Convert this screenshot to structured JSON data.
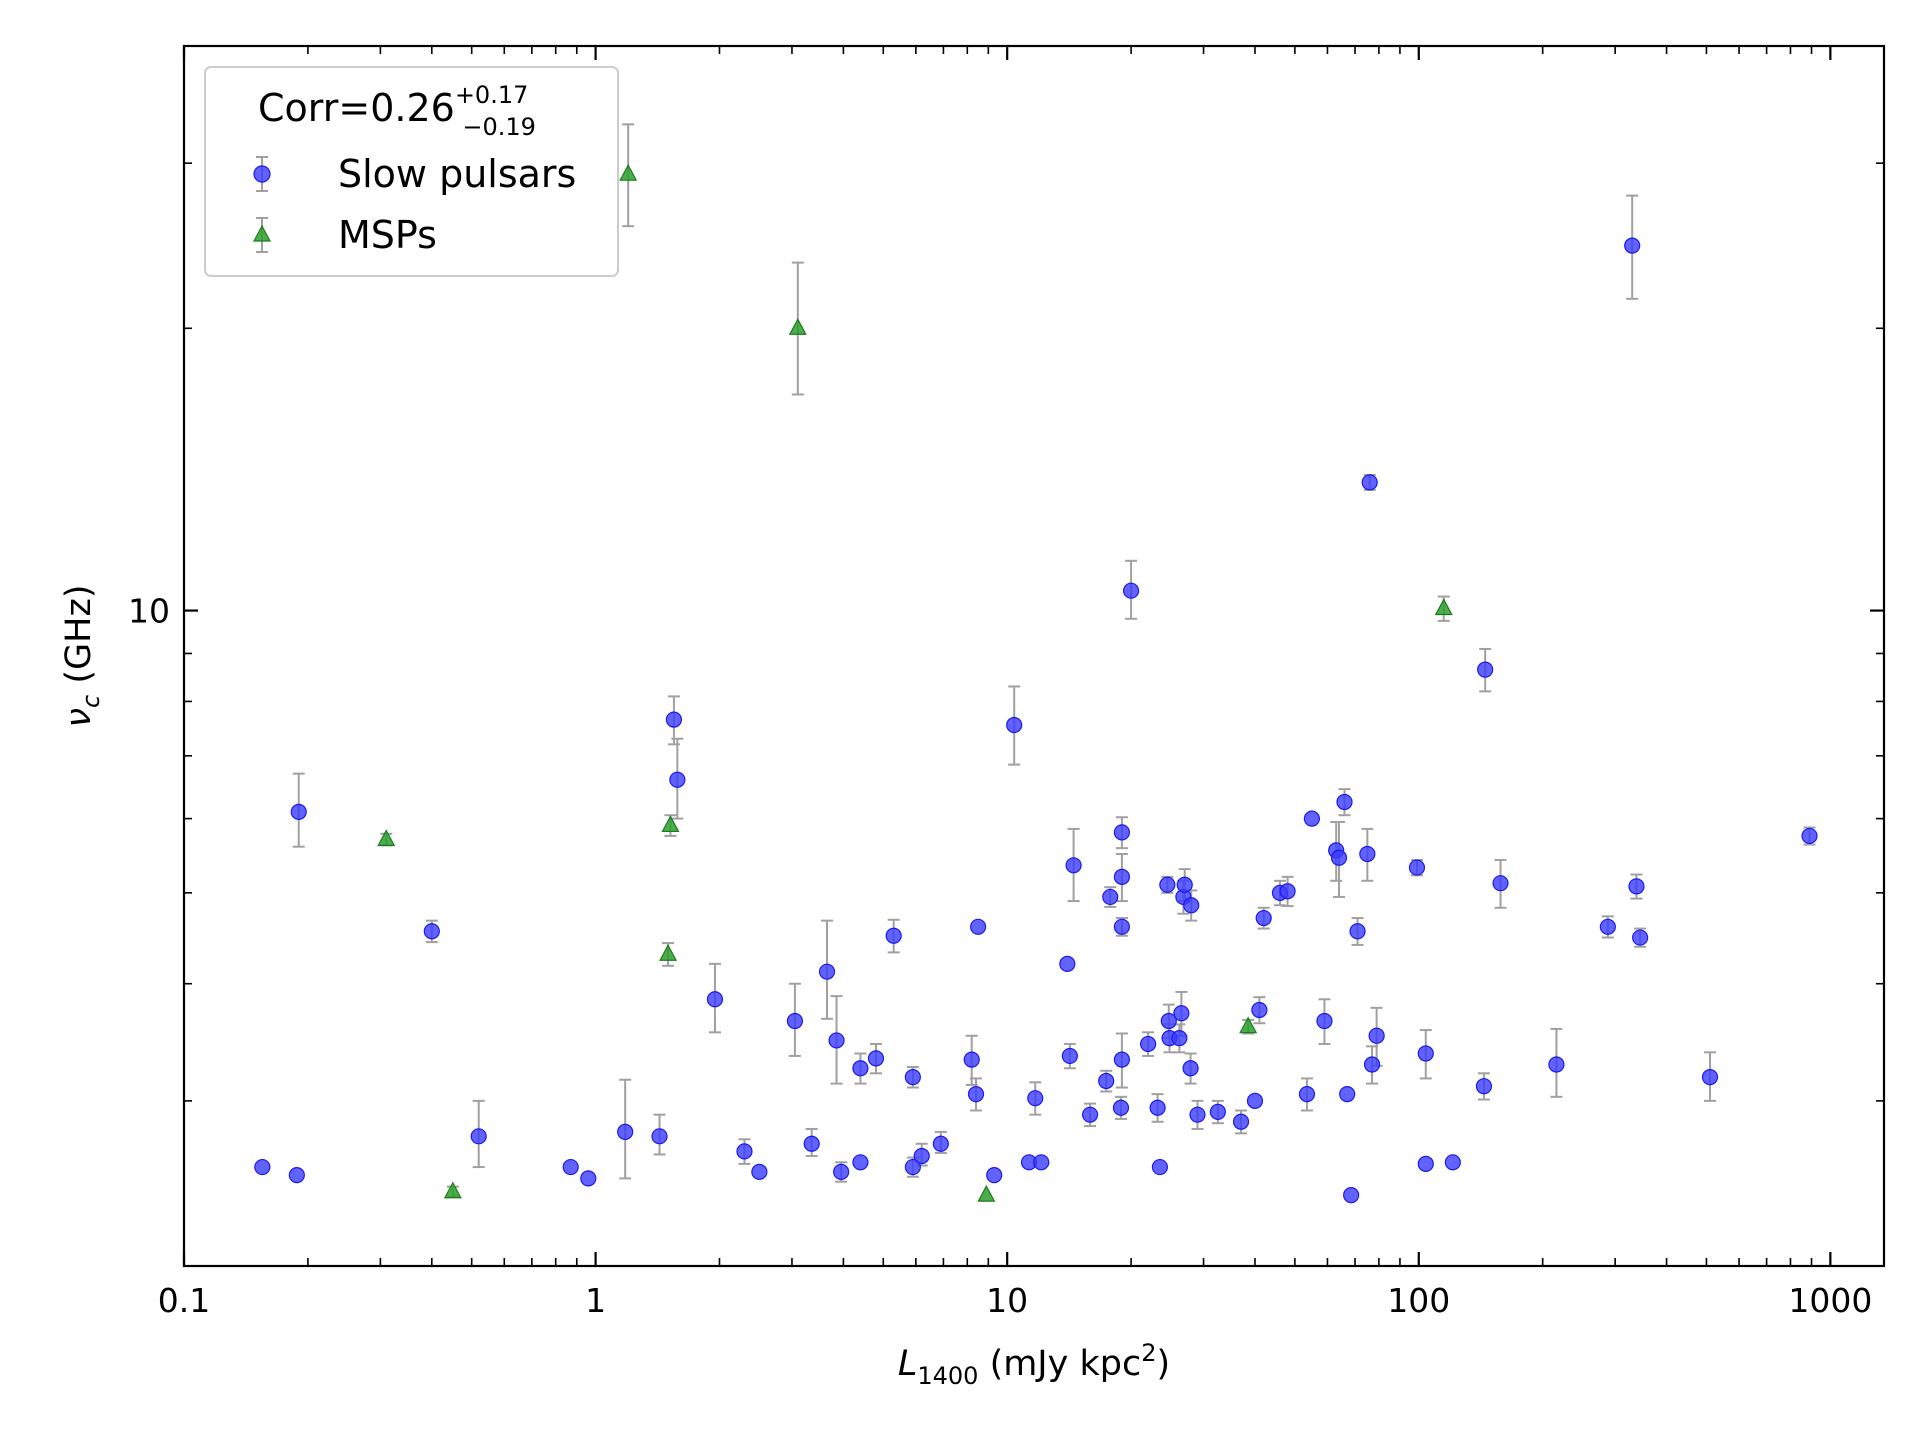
{
  "chart_data": {
    "type": "scatter",
    "xscale": "log",
    "yscale": "log",
    "xlim": [
      0.1,
      1350
    ],
    "ylim": [
      2.0,
      40
    ],
    "xticks": [
      {
        "value": 0.1,
        "label": "0.1"
      },
      {
        "value": 1,
        "label": "1"
      },
      {
        "value": 10,
        "label": "10"
      },
      {
        "value": 100,
        "label": "100"
      },
      {
        "value": 1000,
        "label": "1000"
      }
    ],
    "yticks": [
      {
        "value": 10,
        "label": "10"
      }
    ],
    "xlabel": {
      "main": "L",
      "sub": "1400",
      "unit_pre": " (mJy kpc",
      "unit_sup": "2",
      "unit_post": ")"
    },
    "ylabel": {
      "main": "ν",
      "sub": "c",
      "unit": " (GHz)"
    },
    "grid": false,
    "legend": {
      "placement": "top-left",
      "title_main": "Corr=0.26",
      "title_sup": "+0.17",
      "title_sub": "−0.19"
    },
    "colors": {
      "slow": "#3b3bff",
      "msp": "#2ca02c",
      "errorbar": "#a0a0a0"
    },
    "series": [
      {
        "name": "Slow pulsars",
        "marker": "circle",
        "points": [
          [
            0.155,
            2.55,
            0,
            0
          ],
          [
            0.188,
            2.5,
            0,
            0
          ],
          [
            0.19,
            6.1,
            0.6,
            0.5
          ],
          [
            0.4,
            4.55,
            0.12,
            0.12
          ],
          [
            0.52,
            2.75,
            0.25,
            0.2
          ],
          [
            0.87,
            2.55,
            0,
            0
          ],
          [
            0.96,
            2.48,
            0,
            0
          ],
          [
            1.18,
            2.78,
            0.38,
            0.3
          ],
          [
            1.43,
            2.75,
            0.15,
            0.12
          ],
          [
            1.55,
            7.65,
            0.45,
            0.45
          ],
          [
            1.58,
            6.6,
            0.7,
            0.6
          ],
          [
            1.95,
            3.85,
            0.35,
            0.3
          ],
          [
            2.3,
            2.65,
            0.08,
            0.08
          ],
          [
            2.5,
            2.52,
            0,
            0
          ],
          [
            3.05,
            3.65,
            0.35,
            0.3
          ],
          [
            3.35,
            2.7,
            0.1,
            0.08
          ],
          [
            3.65,
            4.12,
            0.55,
            0.45
          ],
          [
            3.85,
            3.48,
            0.4,
            0.35
          ],
          [
            3.95,
            2.52,
            0.06,
            0.06
          ],
          [
            4.4,
            3.25,
            0.12,
            0.12
          ],
          [
            4.4,
            2.58,
            0,
            0
          ],
          [
            4.8,
            3.33,
            0.12,
            0.12
          ],
          [
            5.3,
            4.5,
            0.18,
            0.18
          ],
          [
            5.9,
            3.18,
            0.08,
            0.08
          ],
          [
            5.9,
            2.55,
            0.06,
            0.06
          ],
          [
            6.2,
            2.62,
            0.08,
            0.06
          ],
          [
            6.9,
            2.7,
            0.08,
            0.06
          ],
          [
            8.2,
            3.32,
            0.2,
            0.2
          ],
          [
            8.4,
            3.05,
            0.12,
            0.12
          ],
          [
            8.5,
            4.6,
            0,
            0
          ],
          [
            9.3,
            2.5,
            0,
            0
          ],
          [
            10.4,
            7.55,
            0.75,
            0.7
          ],
          [
            11.3,
            2.58,
            0,
            0
          ],
          [
            11.7,
            3.02,
            0.12,
            0.12
          ],
          [
            12.1,
            2.58,
            0,
            0
          ],
          [
            14.0,
            4.2,
            0,
            0
          ],
          [
            14.2,
            3.35,
            0.1,
            0.1
          ],
          [
            14.5,
            5.35,
            0.5,
            0.45
          ],
          [
            15.9,
            2.9,
            0.08,
            0.08
          ],
          [
            17.4,
            3.15,
            0.08,
            0.08
          ],
          [
            17.8,
            4.95,
            0.12,
            0.12
          ],
          [
            18.9,
            2.95,
            0.08,
            0.08
          ],
          [
            19.0,
            5.8,
            0.22,
            0.22
          ],
          [
            19.0,
            3.32,
            0.22,
            0.22
          ],
          [
            19.0,
            4.6,
            0.1,
            0.1
          ],
          [
            19.0,
            5.2,
            0.3,
            0.3
          ],
          [
            20.0,
            10.5,
            0.8,
            0.7
          ],
          [
            22.0,
            3.45,
            0.1,
            0.1
          ],
          [
            23.2,
            2.95,
            0.1,
            0.1
          ],
          [
            23.5,
            2.55,
            0,
            0
          ],
          [
            24.5,
            5.1,
            0.1,
            0.1
          ],
          [
            24.7,
            3.65,
            0.15,
            0.15
          ],
          [
            24.8,
            3.5,
            0.12,
            0.12
          ],
          [
            26.2,
            3.5,
            0.12,
            0.12
          ],
          [
            26.5,
            3.72,
            0.2,
            0.2
          ],
          [
            26.8,
            4.95,
            0.2,
            0.2
          ],
          [
            27.0,
            5.1,
            0.2,
            0.2
          ],
          [
            27.9,
            3.25,
            0.12,
            0.12
          ],
          [
            28.0,
            4.85,
            0.18,
            0.18
          ],
          [
            29.0,
            2.9,
            0.1,
            0.1
          ],
          [
            32.5,
            2.92,
            0.08,
            0.08
          ],
          [
            37.0,
            2.85,
            0.08,
            0.08
          ],
          [
            40.0,
            3.0,
            0,
            0
          ],
          [
            41.0,
            3.75,
            0.12,
            0.12
          ],
          [
            42.0,
            4.7,
            0.12,
            0.12
          ],
          [
            46.0,
            5.0,
            0.15,
            0.15
          ],
          [
            48.0,
            5.02,
            0.18,
            0.18
          ],
          [
            53.5,
            3.05,
            0.12,
            0.12
          ],
          [
            55.0,
            6.0,
            0,
            0
          ],
          [
            59.0,
            3.65,
            0.2,
            0.2
          ],
          [
            63.0,
            5.55,
            0.4,
            0.4
          ],
          [
            64.0,
            5.45,
            0.5,
            0.5
          ],
          [
            66.0,
            6.25,
            0.2,
            0.2
          ],
          [
            67.0,
            3.05,
            0,
            0
          ],
          [
            68.5,
            2.38,
            0,
            0
          ],
          [
            71.0,
            4.55,
            0.15,
            0.15
          ],
          [
            75.0,
            5.5,
            0.35,
            0.35
          ],
          [
            76.0,
            13.7,
            0.25,
            0.25
          ],
          [
            77.0,
            3.28,
            0.15,
            0.15
          ],
          [
            79.0,
            3.52,
            0.25,
            0.25
          ],
          [
            99.0,
            5.32,
            0.1,
            0.1
          ],
          [
            104.0,
            3.37,
            0.2,
            0.2
          ],
          [
            104.0,
            2.57,
            0,
            0
          ],
          [
            121.0,
            2.58,
            0,
            0
          ],
          [
            144.0,
            3.11,
            0.1,
            0.1
          ],
          [
            145.0,
            8.65,
            0.45,
            0.45
          ],
          [
            158.0,
            5.12,
            0.3,
            0.3
          ],
          [
            216.0,
            3.28,
            0.3,
            0.25
          ],
          [
            288.0,
            4.6,
            0.12,
            0.12
          ],
          [
            330.0,
            24.5,
            3.2,
            3.0
          ],
          [
            338.0,
            5.08,
            0.15,
            0.15
          ],
          [
            345.0,
            4.48,
            0.1,
            0.1
          ],
          [
            510.0,
            3.18,
            0.2,
            0.18
          ],
          [
            890.0,
            5.75,
            0.12,
            0.12
          ]
        ]
      },
      {
        "name": "MSPs",
        "marker": "triangle",
        "points": [
          [
            1.2,
            29.2,
            3.8,
            3.5
          ],
          [
            3.1,
            20.0,
            3.5,
            3.0
          ],
          [
            0.31,
            5.7,
            0.08,
            0.08
          ],
          [
            0.45,
            2.4,
            0.03,
            0.03
          ],
          [
            1.52,
            5.9,
            0.15,
            0.15
          ],
          [
            1.5,
            4.3,
            0.12,
            0.12
          ],
          [
            8.9,
            2.38,
            0,
            0
          ],
          [
            38.5,
            3.6,
            0.06,
            0.06
          ],
          [
            115.0,
            10.05,
            0.3,
            0.3
          ]
        ]
      }
    ]
  }
}
